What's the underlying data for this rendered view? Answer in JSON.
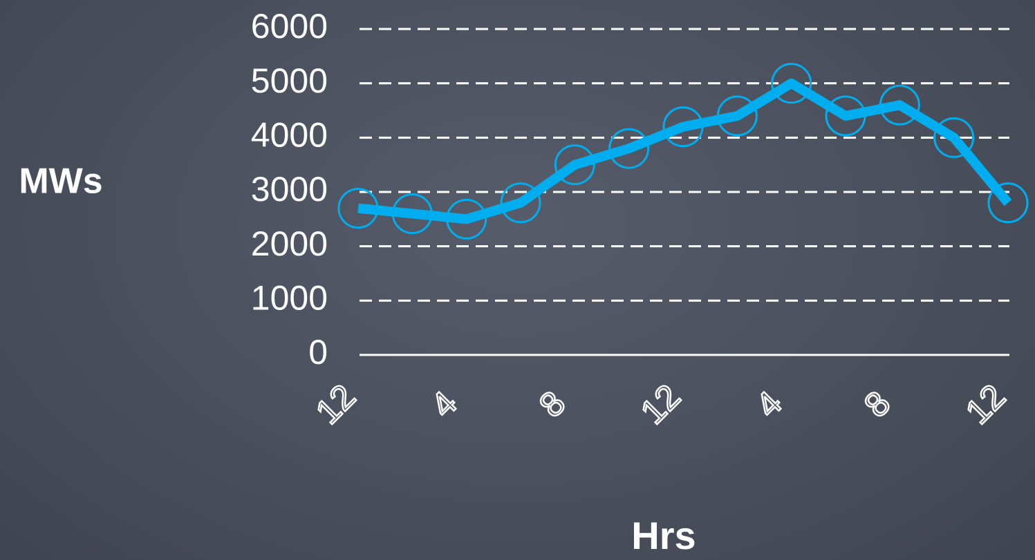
{
  "chart_data": {
    "type": "line",
    "x_label": "Hrs",
    "y_label": "MWs",
    "categories": [
      "12",
      null,
      "4",
      null,
      "8",
      null,
      "12",
      null,
      "4",
      null,
      "8",
      null,
      "12"
    ],
    "series": [
      {
        "color": "#00aeef",
        "values": [
          2700,
          2600,
          2500,
          2800,
          3500,
          3800,
          4200,
          4400,
          5000,
          4400,
          4600,
          4000,
          2800
        ]
      }
    ],
    "ylim": [
      0,
      6000
    ],
    "yticks": [
      0,
      1000,
      2000,
      3000,
      4000,
      5000,
      6000
    ],
    "grid": true
  }
}
